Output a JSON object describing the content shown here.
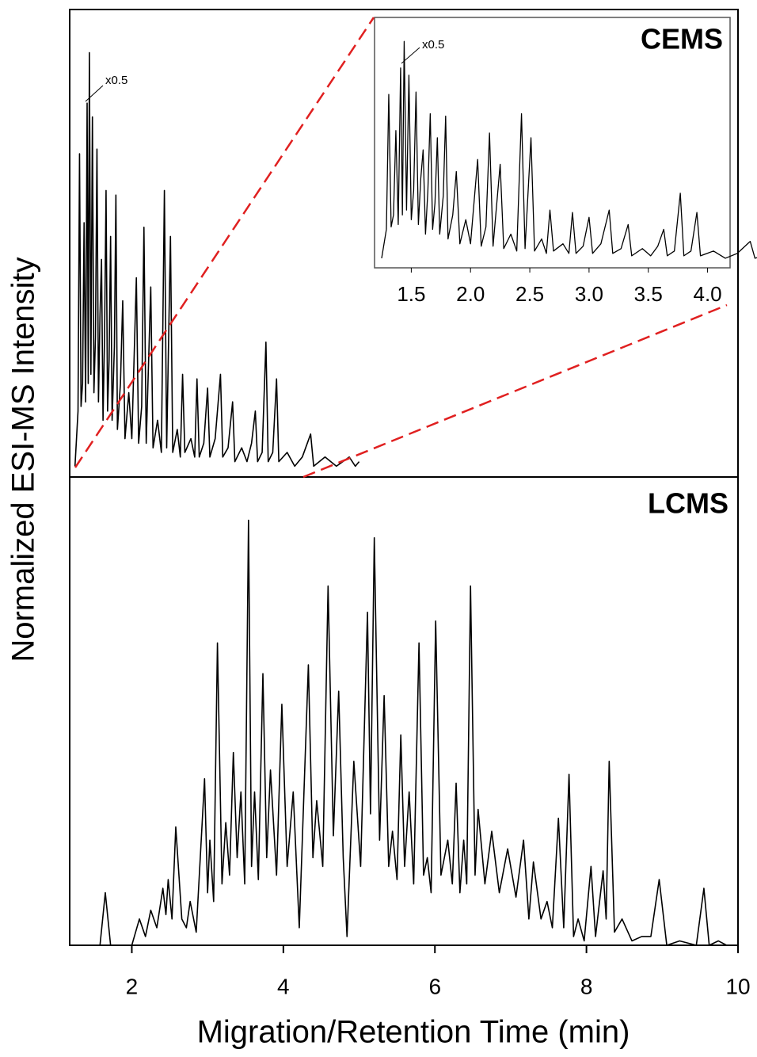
{
  "chart_data": [
    {
      "type": "line",
      "title": "CEMS",
      "ylabel": "Normalized ESI-MS Intensity",
      "annotation": "x0.5",
      "xlim": [
        1.18,
        10
      ],
      "ylim": [
        0,
        100
      ],
      "series": [
        {
          "color": "#000000",
          "x": [
            1.25,
            1.29,
            1.31,
            1.33,
            1.35,
            1.37,
            1.39,
            1.41,
            1.425,
            1.44,
            1.46,
            1.48,
            1.5,
            1.52,
            1.54,
            1.56,
            1.58,
            1.6,
            1.62,
            1.64,
            1.66,
            1.68,
            1.7,
            1.72,
            1.74,
            1.77,
            1.79,
            1.81,
            1.85,
            1.88,
            1.91,
            1.96,
            2.0,
            2.06,
            2.09,
            2.13,
            2.16,
            2.19,
            2.25,
            2.28,
            2.34,
            2.39,
            2.43,
            2.46,
            2.51,
            2.54,
            2.6,
            2.64,
            2.67,
            2.7,
            2.78,
            2.83,
            2.86,
            2.89,
            2.95,
            3.0,
            3.03,
            3.1,
            3.17,
            3.2,
            3.27,
            3.33,
            3.36,
            3.45,
            3.52,
            3.58,
            3.63,
            3.66,
            3.72,
            3.77,
            3.8,
            3.86,
            3.91,
            3.94,
            4.05,
            4.15,
            4.25,
            4.36,
            4.4,
            4.55,
            4.7,
            4.87,
            4.95,
            5.0
          ],
          "values": [
            2,
            14,
            70,
            15,
            20,
            55,
            16,
            81,
            20,
            92,
            22,
            78,
            18,
            30,
            71,
            16,
            35,
            47,
            12,
            30,
            62,
            14,
            25,
            52,
            12,
            28,
            61,
            10,
            20,
            38,
            8,
            18,
            8,
            43,
            7,
            15,
            54,
            7,
            41,
            6,
            12,
            5,
            62,
            6,
            52,
            5,
            10,
            4,
            22,
            5,
            8,
            4,
            21,
            4,
            7,
            19,
            4,
            8,
            22,
            4,
            6,
            16,
            3,
            6,
            3,
            7,
            14,
            3,
            5,
            29,
            3,
            5,
            21,
            3,
            5,
            2,
            4,
            9,
            2,
            4,
            2,
            4,
            2,
            3
          ]
        }
      ],
      "inset": {
        "xlim": [
          1.19,
          4.19
        ],
        "ylim": [
          0,
          100
        ],
        "xticks": [
          1.5,
          {
            "value": 2,
            "label": "2.0"
          },
          2.5,
          {
            "value": 3,
            "label": "3.0"
          },
          3.5,
          {
            "value": 4,
            "label": "4.0"
          }
        ]
      }
    },
    {
      "type": "line",
      "title": "LCMS",
      "xlabel": "Migration/Retention Time (min)",
      "xlim": [
        1.18,
        10
      ],
      "ylim": [
        0,
        100
      ],
      "xticks": [
        2,
        4,
        6,
        8,
        10
      ],
      "series": [
        {
          "color": "#000000",
          "x": [
            1.18,
            1.58,
            1.65,
            1.72,
            2.0,
            2.1,
            2.18,
            2.25,
            2.33,
            2.41,
            2.45,
            2.48,
            2.53,
            2.58,
            2.66,
            2.72,
            2.77,
            2.85,
            2.96,
            3.0,
            3.03,
            3.08,
            3.13,
            3.19,
            3.24,
            3.29,
            3.34,
            3.39,
            3.44,
            3.49,
            3.54,
            3.58,
            3.62,
            3.67,
            3.73,
            3.78,
            3.83,
            3.91,
            3.98,
            4.05,
            4.13,
            4.21,
            4.33,
            4.39,
            4.44,
            4.52,
            4.59,
            4.66,
            4.73,
            4.79,
            4.84,
            4.93,
            5.02,
            5.11,
            5.15,
            5.2,
            5.27,
            5.33,
            5.39,
            5.44,
            5.5,
            5.55,
            5.6,
            5.66,
            5.72,
            5.79,
            5.85,
            5.9,
            5.95,
            6.01,
            6.08,
            6.17,
            6.23,
            6.28,
            6.33,
            6.38,
            6.42,
            6.47,
            6.53,
            6.57,
            6.66,
            6.75,
            6.85,
            6.96,
            7.07,
            7.17,
            7.24,
            7.3,
            7.4,
            7.48,
            7.55,
            7.63,
            7.7,
            7.77,
            7.83,
            7.89,
            7.97,
            8.06,
            8.12,
            8.22,
            8.26,
            8.3,
            8.37,
            8.47,
            8.6,
            8.73,
            8.85,
            8.96,
            9.06,
            9.23,
            9.45,
            9.55,
            9.62,
            9.74,
            9.85,
            10.0
          ],
          "values": [
            0,
            0,
            12,
            0,
            0,
            6,
            2,
            8,
            4,
            13,
            7,
            15,
            6,
            27,
            6,
            4,
            10,
            3,
            38,
            12,
            24,
            10,
            69,
            14,
            28,
            16,
            44,
            20,
            35,
            14,
            97,
            18,
            35,
            15,
            62,
            20,
            40,
            16,
            55,
            18,
            35,
            4,
            64,
            20,
            33,
            18,
            82,
            25,
            58,
            20,
            2,
            42,
            18,
            76,
            30,
            93,
            24,
            57,
            18,
            26,
            15,
            48,
            18,
            35,
            14,
            69,
            16,
            20,
            12,
            74,
            16,
            24,
            14,
            37,
            12,
            24,
            14,
            82,
            16,
            31,
            14,
            26,
            12,
            22,
            11,
            24,
            6,
            19,
            6,
            10,
            4,
            29,
            4,
            39,
            2,
            6,
            1,
            18,
            2,
            17,
            6,
            42,
            3,
            6,
            1,
            2,
            2,
            15,
            0,
            1,
            0,
            13,
            0,
            1,
            0,
            0
          ]
        }
      ]
    }
  ]
}
